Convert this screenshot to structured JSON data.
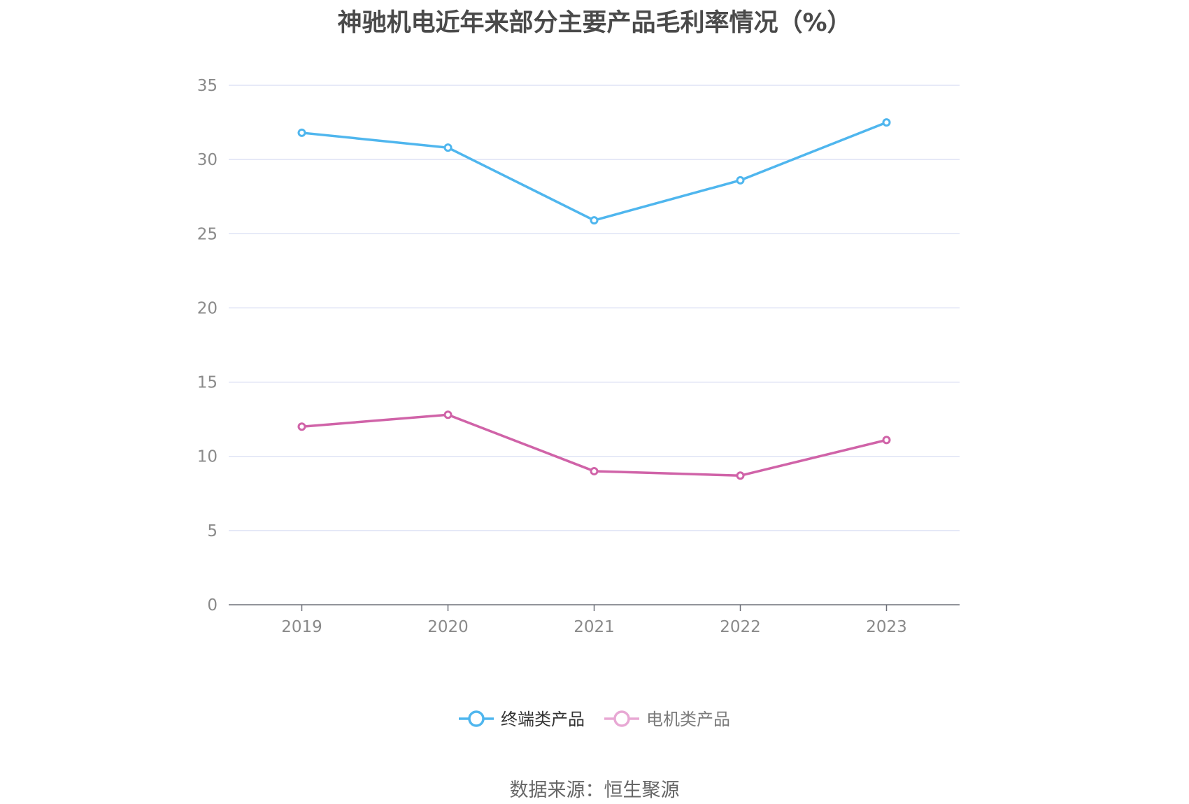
{
  "chart_data": {
    "type": "line",
    "title": "神驰机电近年来部分主要产品毛利率情况（%）",
    "categories": [
      "2019",
      "2020",
      "2021",
      "2022",
      "2023"
    ],
    "series": [
      {
        "name": "终端类产品",
        "color": "#4fb6ee",
        "values": [
          31.8,
          30.8,
          25.9,
          28.6,
          32.5
        ]
      },
      {
        "name": "电机类产品",
        "color": "#d063a8",
        "legend_color": "#e8a8d4",
        "values": [
          12.0,
          12.8,
          9.0,
          8.7,
          11.1
        ]
      }
    ],
    "ylim": [
      0,
      35
    ],
    "yticks": [
      0,
      5,
      10,
      15,
      20,
      25,
      30,
      35
    ],
    "xlabel": "",
    "ylabel": "",
    "grid": true,
    "grid_color": "#dfe3f5",
    "legend_position": "bottom-center",
    "source": "数据来源：恒生聚源"
  }
}
